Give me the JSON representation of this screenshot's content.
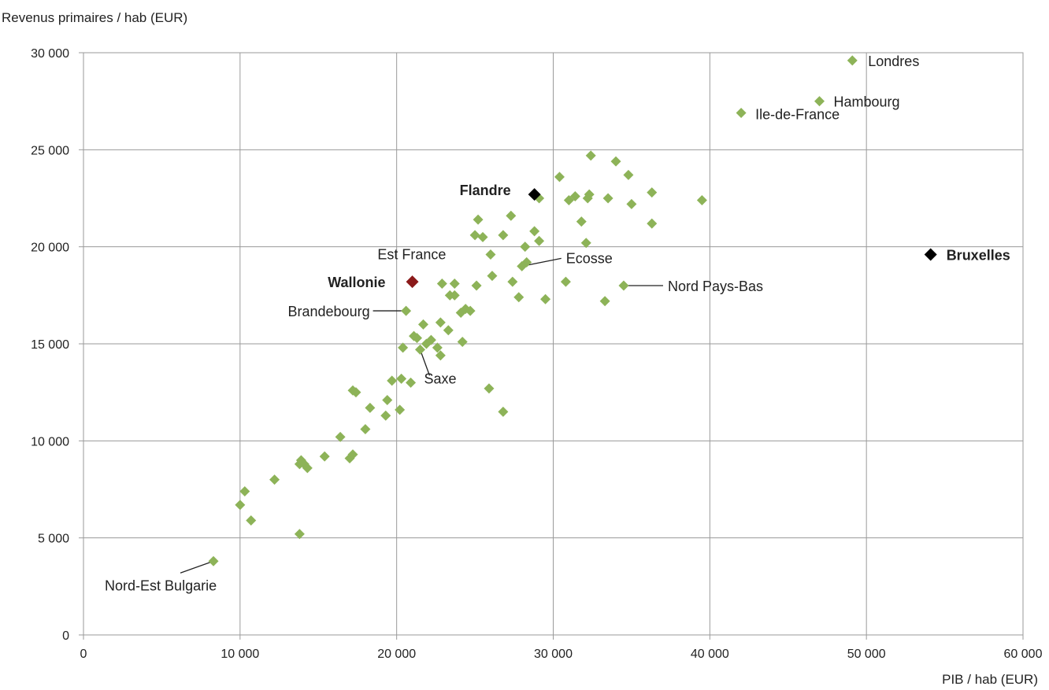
{
  "chart_data": {
    "type": "scatter",
    "title": "",
    "xlabel": "PIB / hab (EUR)",
    "ylabel": "Revenus primaires / hab (EUR)",
    "xlim": [
      0,
      60000
    ],
    "ylim": [
      0,
      30000
    ],
    "xticks": [
      0,
      10000,
      20000,
      30000,
      40000,
      50000,
      60000
    ],
    "yticks": [
      0,
      5000,
      10000,
      15000,
      20000,
      25000,
      30000
    ],
    "xtick_labels": [
      "0",
      "10 000",
      "20 000",
      "30 000",
      "40 000",
      "50 000",
      "60 000"
    ],
    "ytick_labels": [
      "0",
      "5 000",
      "10 000",
      "15 000",
      "20 000",
      "25 000",
      "30 000"
    ],
    "grid": true,
    "legend": "none",
    "colors": {
      "regions": "#8db358",
      "flandre": "#000000",
      "bruxelles": "#000000",
      "wallonie": "#8b1a1a"
    },
    "series": [
      {
        "color": "#8db358",
        "points": [
          [
            8300,
            3800
          ],
          [
            10000,
            6700
          ],
          [
            10300,
            7400
          ],
          [
            10700,
            5900
          ],
          [
            12200,
            8000
          ],
          [
            13800,
            5200
          ],
          [
            13800,
            8800
          ],
          [
            13900,
            9000
          ],
          [
            14100,
            8800
          ],
          [
            14300,
            8600
          ],
          [
            15400,
            9200
          ],
          [
            16400,
            10200
          ],
          [
            17000,
            9100
          ],
          [
            17200,
            9300
          ],
          [
            17200,
            12600
          ],
          [
            17400,
            12500
          ],
          [
            18000,
            10600
          ],
          [
            18300,
            11700
          ],
          [
            19300,
            11300
          ],
          [
            19400,
            12100
          ],
          [
            19700,
            13100
          ],
          [
            20200,
            11600
          ],
          [
            20300,
            13200
          ],
          [
            20400,
            14800
          ],
          [
            20600,
            16700
          ],
          [
            20900,
            13000
          ],
          [
            21100,
            15400
          ],
          [
            21300,
            15300
          ],
          [
            21500,
            14700
          ],
          [
            21700,
            16000
          ],
          [
            21900,
            15000
          ],
          [
            22200,
            15200
          ],
          [
            22600,
            14800
          ],
          [
            22800,
            14400
          ],
          [
            22800,
            16100
          ],
          [
            22900,
            18100
          ],
          [
            23300,
            15700
          ],
          [
            23400,
            17500
          ],
          [
            23700,
            18100
          ],
          [
            23700,
            17500
          ],
          [
            24100,
            16600
          ],
          [
            24200,
            15100
          ],
          [
            24400,
            16800
          ],
          [
            24700,
            16700
          ],
          [
            25000,
            20600
          ],
          [
            25100,
            18000
          ],
          [
            25200,
            21400
          ],
          [
            25500,
            20500
          ],
          [
            25900,
            12700
          ],
          [
            26000,
            19600
          ],
          [
            26100,
            18500
          ],
          [
            26800,
            20600
          ],
          [
            26800,
            11500
          ],
          [
            27300,
            21600
          ],
          [
            27400,
            18200
          ],
          [
            27800,
            17400
          ],
          [
            28000,
            19000
          ],
          [
            28200,
            20000
          ],
          [
            28300,
            19200
          ],
          [
            28800,
            20800
          ],
          [
            29100,
            20300
          ],
          [
            29100,
            22500
          ],
          [
            29500,
            17300
          ],
          [
            30400,
            23600
          ],
          [
            30800,
            18200
          ],
          [
            31000,
            22400
          ],
          [
            31400,
            22600
          ],
          [
            31800,
            21300
          ],
          [
            32100,
            20200
          ],
          [
            32200,
            22500
          ],
          [
            32300,
            22700
          ],
          [
            32400,
            24700
          ],
          [
            33300,
            17200
          ],
          [
            33500,
            22500
          ],
          [
            34000,
            24400
          ],
          [
            34500,
            18000
          ],
          [
            34800,
            23700
          ],
          [
            35000,
            22200
          ],
          [
            36300,
            22800
          ],
          [
            36300,
            21200
          ],
          [
            39500,
            22400
          ],
          [
            42000,
            26900
          ],
          [
            47000,
            27500
          ],
          [
            49100,
            29600
          ]
        ]
      },
      {
        "name": "Flandre",
        "color": "#000000",
        "points": [
          [
            28800,
            22700
          ]
        ]
      },
      {
        "name": "Bruxelles",
        "color": "#000000",
        "points": [
          [
            54100,
            19600
          ]
        ]
      },
      {
        "name": "Wallonie",
        "color": "#8b1a1a",
        "points": [
          [
            21000,
            18200
          ]
        ]
      }
    ],
    "annotations": [
      {
        "text": "Londres",
        "point": [
          49100,
          29600
        ],
        "bold": false,
        "color": "#222222"
      },
      {
        "text": "Hambourg",
        "point": [
          47000,
          27500
        ],
        "bold": false,
        "color": "#222222"
      },
      {
        "text": "Ile-de-France",
        "point": [
          42000,
          26900
        ],
        "bold": false,
        "color": "#222222"
      },
      {
        "text": "Flandre",
        "point": [
          28800,
          22700
        ],
        "bold": true,
        "color": "#000000"
      },
      {
        "text": "Bruxelles",
        "point": [
          54100,
          19600
        ],
        "bold": true,
        "color": "#000000"
      },
      {
        "text": "Est France",
        "point": [
          22900,
          18100
        ],
        "bold": false,
        "color": "#222222"
      },
      {
        "text": "Ecosse",
        "point": [
          28000,
          19000
        ],
        "bold": false,
        "color": "#222222"
      },
      {
        "text": "Wallonie",
        "point": [
          21000,
          18200
        ],
        "bold": true,
        "color": "#8b1a1a"
      },
      {
        "text": "Nord Pays-Bas",
        "point": [
          34500,
          18000
        ],
        "bold": false,
        "color": "#222222"
      },
      {
        "text": "Brandebourg",
        "point": [
          20600,
          16700
        ],
        "bold": false,
        "color": "#222222"
      },
      {
        "text": "Saxe",
        "point": [
          21500,
          14700
        ],
        "bold": false,
        "color": "#222222"
      },
      {
        "text": "Nord-Est Bulgarie",
        "point": [
          8300,
          3800
        ],
        "bold": false,
        "color": "#222222"
      }
    ]
  }
}
